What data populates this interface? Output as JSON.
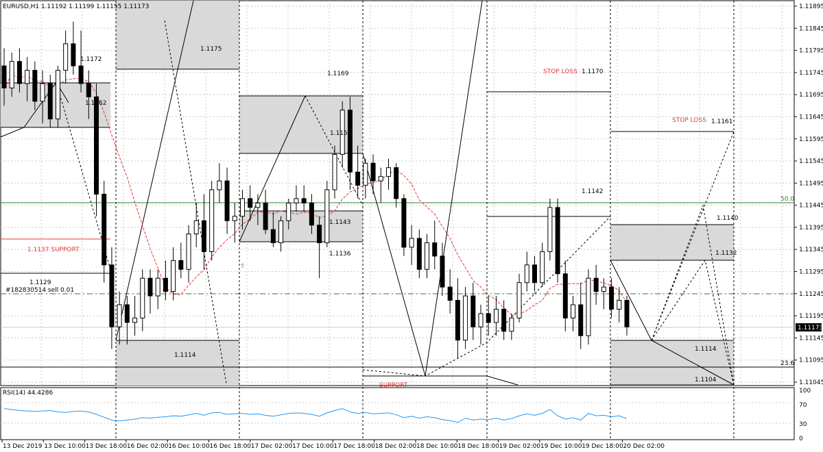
{
  "symbol_header": "EURUSD,H1  1.11192 1.11199 1.11155 1.11173",
  "rsi_header": "RSI(14) 44.4286",
  "current_price_label": "1.11173",
  "price_axis": {
    "ticks": [
      "1.11895",
      "1.11845",
      "1.11795",
      "1.11745",
      "1.11695",
      "1.11645",
      "1.11595",
      "1.11545",
      "1.11495",
      "1.11445",
      "1.11395",
      "1.11345",
      "1.11295",
      "1.11245",
      "1.11195",
      "1.11145",
      "1.11095",
      "1.11045"
    ],
    "min": 1.1104,
    "max": 1.119
  },
  "rsi_axis": {
    "ticks": [
      "100",
      "70",
      "30",
      "0"
    ]
  },
  "time_axis": [
    "13 Dec 2019",
    "13 Dec 10:00",
    "13 Dec 18:00",
    "16 Dec 02:00",
    "16 Dec 10:00",
    "16 Dec 18:00",
    "17 Dec 02:00",
    "17 Dec 10:00",
    "17 Dec 18:00",
    "18 Dec 02:00",
    "18 Dec 10:00",
    "18 Dec 18:00",
    "19 Dec 02:00",
    "19 Dec 10:00",
    "19 Dec 18:00",
    "20 Dec 02:00"
  ],
  "level_labels": {
    "l1172": "1.1172",
    "l1162": "1.1162",
    "l1175": "1.1175",
    "l1169": "1.1169",
    "l1156": "1.1156",
    "l1143": "1.1143",
    "l1136": "1.1136",
    "l1170": "1.1170",
    "l1161": "1.1161",
    "l1142": "1.1142",
    "l1140": "1.1140",
    "l1132": "1.1132",
    "l1114a": "1.1114",
    "l1114b": "1.1114",
    "l1104": "1.1104",
    "l1129": "1.1129",
    "support": "1.1137 SUPPORT",
    "support2": "SUPPORT",
    "stop1": "STOP LOSS",
    "stop2": "STOP LOSS",
    "fib50": "50.0",
    "fib236": "23.6",
    "order": "#182830514 sell 0.01"
  },
  "colors": {
    "bull": "#ffffff",
    "bear": "#000000",
    "grid": "#c8c8c8",
    "ma": "#e53935",
    "rsi": "#2196f3",
    "fib": "#2e7d32",
    "zone": "#d9d9d9",
    "red": "#e53935"
  },
  "candles": [
    [
      1.1176,
      1.118,
      1.1167,
      1.1171
    ],
    [
      1.1171,
      1.1179,
      1.1169,
      1.1177
    ],
    [
      1.1177,
      1.118,
      1.117,
      1.1172
    ],
    [
      1.1172,
      1.1178,
      1.1168,
      1.1175
    ],
    [
      1.1175,
      1.1177,
      1.1166,
      1.1168
    ],
    [
      1.1168,
      1.1175,
      1.1163,
      1.1172
    ],
    [
      1.1172,
      1.1174,
      1.1162,
      1.1164
    ],
    [
      1.1164,
      1.1176,
      1.1162,
      1.1175
    ],
    [
      1.1175,
      1.1184,
      1.1172,
      1.1181
    ],
    [
      1.1181,
      1.1186,
      1.1174,
      1.1176
    ],
    [
      1.1176,
      1.1184,
      1.117,
      1.1172
    ],
    [
      1.1172,
      1.1175,
      1.1164,
      1.1169
    ],
    [
      1.1169,
      1.1172,
      1.1142,
      1.1147
    ],
    [
      1.1147,
      1.115,
      1.1127,
      1.1131
    ],
    [
      1.1131,
      1.1135,
      1.1112,
      1.1117
    ],
    [
      1.1117,
      1.1125,
      1.1113,
      1.1122
    ],
    [
      1.1122,
      1.1124,
      1.1113,
      1.1118
    ],
    [
      1.1118,
      1.1124,
      1.1115,
      1.1119
    ],
    [
      1.1119,
      1.113,
      1.1116,
      1.1128
    ],
    [
      1.1128,
      1.113,
      1.112,
      1.1124
    ],
    [
      1.1124,
      1.113,
      1.1121,
      1.1128
    ],
    [
      1.1128,
      1.1132,
      1.1123,
      1.1125
    ],
    [
      1.1125,
      1.1135,
      1.1123,
      1.1132
    ],
    [
      1.1132,
      1.1136,
      1.1128,
      1.113
    ],
    [
      1.113,
      1.114,
      1.1127,
      1.1138
    ],
    [
      1.1138,
      1.1145,
      1.1135,
      1.1141
    ],
    [
      1.1141,
      1.1147,
      1.113,
      1.1134
    ],
    [
      1.1134,
      1.115,
      1.1132,
      1.1148
    ],
    [
      1.1148,
      1.1154,
      1.1145,
      1.115
    ],
    [
      1.115,
      1.1153,
      1.1138,
      1.1141
    ],
    [
      1.1141,
      1.1145,
      1.1136,
      1.1142
    ],
    [
      1.1142,
      1.1148,
      1.1139,
      1.1146
    ],
    [
      1.1146,
      1.1149,
      1.1141,
      1.1144
    ],
    [
      1.1144,
      1.1147,
      1.114,
      1.1145
    ],
    [
      1.1145,
      1.1148,
      1.1138,
      1.1139
    ],
    [
      1.1139,
      1.1143,
      1.1135,
      1.1136
    ],
    [
      1.1136,
      1.1142,
      1.1134,
      1.1141
    ],
    [
      1.1141,
      1.1146,
      1.1139,
      1.1145
    ],
    [
      1.1145,
      1.1149,
      1.1143,
      1.1146
    ],
    [
      1.1146,
      1.1149,
      1.1143,
      1.1145
    ],
    [
      1.1145,
      1.1147,
      1.1138,
      1.114
    ],
    [
      1.114,
      1.1142,
      1.1128,
      1.1136
    ],
    [
      1.1136,
      1.115,
      1.1135,
      1.1148
    ],
    [
      1.1148,
      1.1158,
      1.1146,
      1.1156
    ],
    [
      1.1156,
      1.1168,
      1.1153,
      1.1166
    ],
    [
      1.1166,
      1.1169,
      1.1148,
      1.1152
    ],
    [
      1.1152,
      1.1158,
      1.1146,
      1.1149
    ],
    [
      1.1149,
      1.1155,
      1.1146,
      1.1154
    ],
    [
      1.1154,
      1.1156,
      1.1147,
      1.115
    ],
    [
      1.115,
      1.1153,
      1.1145,
      1.1151
    ],
    [
      1.1151,
      1.1155,
      1.1148,
      1.1153
    ],
    [
      1.1153,
      1.1154,
      1.1144,
      1.1146
    ],
    [
      1.1146,
      1.1147,
      1.1133,
      1.1135
    ],
    [
      1.1135,
      1.114,
      1.1131,
      1.1137
    ],
    [
      1.1137,
      1.1139,
      1.1128,
      1.113
    ],
    [
      1.113,
      1.1138,
      1.1128,
      1.1136
    ],
    [
      1.1136,
      1.1141,
      1.113,
      1.1133
    ],
    [
      1.1133,
      1.1136,
      1.1124,
      1.1126
    ],
    [
      1.1126,
      1.113,
      1.112,
      1.1123
    ],
    [
      1.1123,
      1.1128,
      1.111,
      1.1114
    ],
    [
      1.1114,
      1.1126,
      1.1112,
      1.1124
    ],
    [
      1.1124,
      1.1127,
      1.1114,
      1.1117
    ],
    [
      1.1117,
      1.1122,
      1.1113,
      1.112
    ],
    [
      1.112,
      1.1124,
      1.1115,
      1.1118
    ],
    [
      1.1118,
      1.1124,
      1.1115,
      1.1121
    ],
    [
      1.1121,
      1.1123,
      1.1114,
      1.1116
    ],
    [
      1.1116,
      1.112,
      1.1114,
      1.1119
    ],
    [
      1.1119,
      1.1129,
      1.1118,
      1.1127
    ],
    [
      1.1127,
      1.1134,
      1.1125,
      1.1131
    ],
    [
      1.1131,
      1.1133,
      1.1125,
      1.1127
    ],
    [
      1.1127,
      1.1136,
      1.1126,
      1.1134
    ],
    [
      1.1134,
      1.1146,
      1.1132,
      1.1144
    ],
    [
      1.1144,
      1.1146,
      1.1127,
      1.1129
    ],
    [
      1.1129,
      1.1132,
      1.1116,
      1.1119
    ],
    [
      1.1119,
      1.1124,
      1.1116,
      1.1122
    ],
    [
      1.1122,
      1.1127,
      1.1112,
      1.1115
    ],
    [
      1.1115,
      1.113,
      1.1113,
      1.1128
    ],
    [
      1.1128,
      1.1131,
      1.1122,
      1.1125
    ],
    [
      1.1125,
      1.1128,
      1.1121,
      1.1126
    ],
    [
      1.1126,
      1.1128,
      1.1119,
      1.1121
    ],
    [
      1.1121,
      1.1126,
      1.1118,
      1.1123
    ],
    [
      1.1123,
      1.1124,
      1.1115,
      1.1117
    ]
  ],
  "rsi_values": [
    62,
    60,
    58,
    57,
    56,
    57,
    58,
    55,
    54,
    56,
    57,
    55,
    50,
    44,
    38,
    36,
    38,
    40,
    43,
    42,
    44,
    45,
    47,
    46,
    49,
    52,
    48,
    53,
    54,
    50,
    51,
    52,
    50,
    51,
    48,
    46,
    49,
    52,
    53,
    52,
    50,
    46,
    53,
    58,
    62,
    55,
    52,
    54,
    51,
    52,
    53,
    49,
    43,
    46,
    42,
    45,
    43,
    39,
    37,
    33,
    42,
    38,
    40,
    39,
    42,
    38,
    41,
    47,
    51,
    48,
    52,
    60,
    47,
    40,
    43,
    38,
    52,
    47,
    48,
    45,
    47,
    41
  ]
}
